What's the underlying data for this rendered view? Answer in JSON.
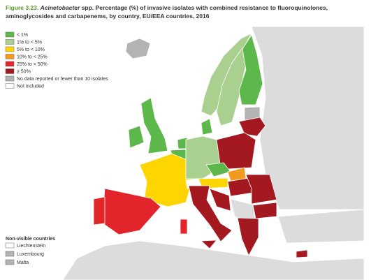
{
  "title": {
    "label": "Figure 3.23.",
    "genus": "Acinetobacter",
    "line1": "spp. Percentage (%) of invasive isolates with combined resistance to fluoroquinolones,",
    "line2": "aminoglycosides and carbapenems, by country, EU/EEA countries, 2016"
  },
  "legend": [
    {
      "label": "< 1%",
      "color": "#5cb84a"
    },
    {
      "label": "1% to < 5%",
      "color": "#a9d08e"
    },
    {
      "label": "5% to < 10%",
      "color": "#ffd500"
    },
    {
      "label": "10% to < 25%",
      "color": "#f39a1e"
    },
    {
      "label": "25% to < 50%",
      "color": "#e2252b"
    },
    {
      "label": "≥ 50%",
      "color": "#a3191f"
    },
    {
      "label": "No data reported or fewer than 10 isolates",
      "color": "#b3b3b3"
    },
    {
      "label": "Not included",
      "color": "#ffffff"
    }
  ],
  "non_visible": {
    "heading": "Non-visible countries",
    "items": [
      {
        "label": "Liechtenstein",
        "color": "#ffffff"
      },
      {
        "label": "Luxembourg",
        "color": "#b3b3b3"
      },
      {
        "label": "Malta",
        "color": "#b3b3b3"
      }
    ]
  }
}
